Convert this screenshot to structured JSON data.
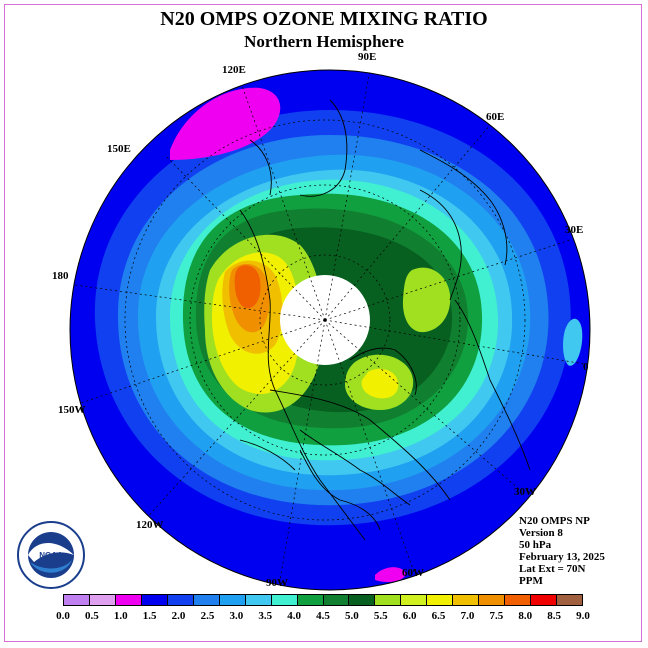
{
  "title": "N20 OMPS OZONE MIXING RATIO",
  "subtitle": "Northern Hemisphere",
  "map": {
    "projection": "north polar stereographic",
    "longitude_labels": [
      "120E",
      "90E",
      "60E",
      "150E",
      "30E",
      "180",
      "0",
      "150W",
      "30W",
      "120W",
      "60W",
      "90W"
    ],
    "pole_data": "missing"
  },
  "info": {
    "line1": "N20 OMPS NP",
    "line2": "Version 8",
    "line3": "50 hPa",
    "line4": "February 13, 2025",
    "line5": "Lat Ext = 70N",
    "line6": "PPM"
  },
  "colorbar": {
    "ticks": [
      "0.0",
      "0.5",
      "1.0",
      "1.5",
      "2.0",
      "2.5",
      "3.0",
      "3.5",
      "4.0",
      "4.5",
      "5.0",
      "5.5",
      "6.0",
      "6.5",
      "7.0",
      "7.5",
      "8.0",
      "8.5",
      "9.0"
    ],
    "colors": [
      "#c080f0",
      "#e0a0f0",
      "#f000f0",
      "#0000f0",
      "#1040f0",
      "#2080f0",
      "#20a0f0",
      "#40c8f0",
      "#40f0d0",
      "#10a040",
      "#108030",
      "#086020",
      "#a0e020",
      "#d0f020",
      "#f0f000",
      "#f0c000",
      "#f09000",
      "#f06000",
      "#f00000",
      "#a06040"
    ]
  },
  "logo": {
    "text": "NOAA",
    "ring_text": "NATIONAL OCEANIC AND ATMOSPHERIC ADMINISTRATION • U.S. DEPARTMENT OF COMMERCE"
  }
}
